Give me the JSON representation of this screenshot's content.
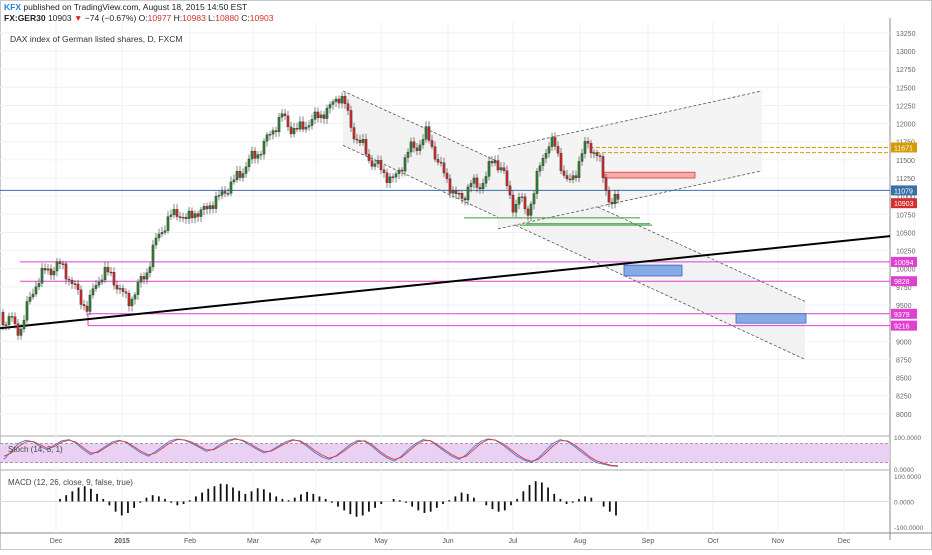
{
  "header": {
    "brand": "KFX",
    "published": "published on TradingView.com, August 18, 2015 14:50 EST",
    "ticker": "FX:GER30",
    "price": "10903",
    "change_arrow": "▼",
    "change": "−74 (−0.67%)",
    "o_label": "O:",
    "o": "10977",
    "h_label": "H:",
    "h": "10983",
    "l_label": "L:",
    "l": "10880",
    "c_label": "C:",
    "c": "10903"
  },
  "chart_data": [
    {
      "type": "candlestick",
      "title": "DAX index of German listed shares, D, FXCM",
      "ylim": [
        7750,
        13400
      ],
      "yticks": [
        8000,
        8250,
        8500,
        8750,
        9000,
        9250,
        9500,
        9750,
        10000,
        10250,
        10500,
        10750,
        11000,
        11250,
        11500,
        11750,
        12000,
        12250,
        12500,
        12750,
        13000,
        13250
      ],
      "xtick_labels": [
        "Dec",
        "2015",
        "Feb",
        "Mar",
        "Apr",
        "May",
        "Jun",
        "Jul",
        "Aug",
        "Sep",
        "Oct",
        "Nov",
        "Dec"
      ],
      "price_path": [
        [
          0,
          9400
        ],
        [
          6,
          9250
        ],
        [
          10,
          9350
        ],
        [
          14,
          9200
        ],
        [
          20,
          9150
        ],
        [
          28,
          9500
        ],
        [
          36,
          9800
        ],
        [
          44,
          9950
        ],
        [
          52,
          10000
        ],
        [
          58,
          10050
        ],
        [
          64,
          10000
        ],
        [
          70,
          9850
        ],
        [
          76,
          9700
        ],
        [
          82,
          9550
        ],
        [
          88,
          9450
        ],
        [
          92,
          9650
        ],
        [
          98,
          9850
        ],
        [
          104,
          9950
        ],
        [
          112,
          9900
        ],
        [
          120,
          9700
        ],
        [
          128,
          9550
        ],
        [
          134,
          9650
        ],
        [
          140,
          9800
        ],
        [
          148,
          10000
        ],
        [
          155,
          10350
        ],
        [
          162,
          10550
        ],
        [
          170,
          10700
        ],
        [
          178,
          10800
        ],
        [
          186,
          10650
        ],
        [
          194,
          10800
        ],
        [
          202,
          10750
        ],
        [
          210,
          10900
        ],
        [
          218,
          10950
        ],
        [
          226,
          11100
        ],
        [
          234,
          11200
        ],
        [
          242,
          11350
        ],
        [
          250,
          11500
        ],
        [
          258,
          11600
        ],
        [
          266,
          11750
        ],
        [
          274,
          11950
        ],
        [
          282,
          12100
        ],
        [
          290,
          11950
        ],
        [
          298,
          11900
        ],
        [
          306,
          12000
        ],
        [
          314,
          12050
        ],
        [
          322,
          12150
        ],
        [
          330,
          12200
        ],
        [
          336,
          12350
        ],
        [
          340,
          12400
        ],
        [
          344,
          12300
        ],
        [
          350,
          12000
        ],
        [
          356,
          11800
        ],
        [
          362,
          11700
        ],
        [
          370,
          11500
        ],
        [
          378,
          11400
        ],
        [
          386,
          11300
        ],
        [
          394,
          11200
        ],
        [
          402,
          11450
        ],
        [
          410,
          11650
        ],
        [
          418,
          11700
        ],
        [
          426,
          11850
        ],
        [
          432,
          11700
        ],
        [
          440,
          11400
        ],
        [
          448,
          11200
        ],
        [
          456,
          11000
        ],
        [
          462,
          10950
        ],
        [
          470,
          11200
        ],
        [
          478,
          11100
        ],
        [
          486,
          11300
        ],
        [
          494,
          11500
        ],
        [
          502,
          11400
        ],
        [
          508,
          11050
        ],
        [
          514,
          10850
        ],
        [
          520,
          11000
        ],
        [
          526,
          10750
        ],
        [
          532,
          10950
        ],
        [
          538,
          11300
        ],
        [
          544,
          11600
        ],
        [
          550,
          11750
        ],
        [
          556,
          11650
        ],
        [
          562,
          11400
        ],
        [
          568,
          11150
        ],
        [
          574,
          11250
        ],
        [
          580,
          11550
        ],
        [
          586,
          11700
        ],
        [
          592,
          11650
        ],
        [
          598,
          11600
        ],
        [
          604,
          11150
        ],
        [
          610,
          10950
        ],
        [
          616,
          10950
        ],
        [
          620,
          10903
        ]
      ],
      "horizontal_lines": [
        {
          "value": 11079,
          "label": "11079",
          "color": "#3a6fa8"
        },
        {
          "value": 11671,
          "label": "11671",
          "color": "#d59b00",
          "dashed": true
        },
        {
          "value": 11600,
          "dashed": true,
          "color": "#d59b00"
        },
        {
          "value": 10094,
          "label": "10094",
          "color": "#e040d0"
        },
        {
          "value": 9828,
          "label": "9828",
          "color": "#e040d0"
        },
        {
          "value": 9379,
          "label": "9379",
          "color": "#e040d0"
        },
        {
          "value": 9216,
          "label": "9216",
          "color": "#e040d0"
        }
      ],
      "last_price_label": "10903",
      "trendline": {
        "from": [
          0,
          9180
        ],
        "to": [
          890,
          10450
        ],
        "color": "#000000"
      },
      "down_channel": {
        "upper": [
          [
            343,
            12450
          ],
          [
            805,
            9550
          ]
        ],
        "lower": [
          [
            343,
            11700
          ],
          [
            805,
            8750
          ]
        ]
      },
      "up_channel": {
        "upper": [
          [
            498,
            11650
          ],
          [
            762,
            12450
          ]
        ],
        "lower": [
          [
            498,
            10550
          ],
          [
            762,
            11350
          ]
        ]
      },
      "boxes": [
        {
          "x0": 624,
          "x1": 682,
          "y0": 9900,
          "y1": 10050,
          "color": "#6a97e0"
        },
        {
          "x0": 736,
          "x1": 806,
          "y0": 9250,
          "y1": 9380,
          "color": "#6a97e0"
        },
        {
          "x0": 604,
          "x1": 695,
          "y0": 11250,
          "y1": 11330,
          "color": "#ef9a9a"
        }
      ]
    },
    {
      "type": "line",
      "title": "Stoch (14, 3, 1)",
      "ylim": [
        0,
        100
      ],
      "yticks": [
        100,
        0
      ],
      "ytick_labels": [
        "100.0000",
        "0.0000"
      ],
      "band": [
        20,
        80
      ],
      "series": [
        {
          "color": "#3f7fd8",
          "values": [
            30,
            55,
            80,
            90,
            85,
            70,
            60,
            75,
            88,
            92,
            80,
            60,
            45,
            55,
            70,
            85,
            90,
            82,
            65,
            50,
            40,
            55,
            72,
            88,
            94,
            90,
            80,
            68,
            55,
            62,
            78,
            90,
            95,
            88,
            75,
            62,
            50,
            58,
            72,
            85,
            92,
            86,
            70,
            52,
            38,
            30,
            42,
            60,
            78,
            90,
            86,
            70,
            50,
            35,
            25,
            40,
            62,
            80,
            92,
            88,
            72,
            55,
            40,
            30,
            45,
            68,
            86,
            94,
            90,
            76,
            58,
            40,
            28,
            20,
            35,
            58,
            80,
            92,
            86,
            70,
            52,
            35,
            20,
            15,
            10,
            8
          ]
        },
        {
          "color": "#e53935",
          "values": [
            40,
            50,
            70,
            85,
            86,
            76,
            64,
            70,
            84,
            90,
            84,
            66,
            50,
            52,
            66,
            80,
            88,
            84,
            70,
            55,
            44,
            50,
            66,
            82,
            92,
            91,
            84,
            72,
            60,
            60,
            72,
            86,
            93,
            90,
            80,
            66,
            54,
            56,
            68,
            80,
            90,
            88,
            75,
            58,
            44,
            34,
            40,
            55,
            72,
            86,
            88,
            75,
            56,
            40,
            30,
            36,
            55,
            74,
            88,
            89,
            76,
            60,
            45,
            34,
            40,
            60,
            80,
            92,
            91,
            80,
            64,
            46,
            32,
            24,
            30,
            50,
            72,
            88,
            88,
            75,
            58,
            40,
            26,
            18,
            12,
            10
          ]
        }
      ]
    },
    {
      "type": "bar",
      "title": "MACD (12, 26, close, 9, false, true)",
      "ylim": [
        -120,
        120
      ],
      "yticks": [
        100,
        0,
        -100
      ],
      "ytick_labels": [
        "100.0000",
        "0.0000",
        "-100.0000"
      ],
      "values": [
        10,
        25,
        40,
        55,
        60,
        50,
        30,
        10,
        -15,
        -40,
        -55,
        -45,
        -25,
        -5,
        15,
        25,
        20,
        10,
        -5,
        -15,
        -10,
        5,
        20,
        35,
        50,
        60,
        70,
        68,
        55,
        42,
        30,
        40,
        52,
        48,
        35,
        20,
        10,
        5,
        15,
        28,
        38,
        30,
        20,
        10,
        -5,
        -20,
        -35,
        -50,
        -60,
        -55,
        -40,
        -25,
        -10,
        0,
        10,
        5,
        -5,
        -20,
        -35,
        -45,
        -40,
        -25,
        -10,
        5,
        20,
        35,
        30,
        15,
        0,
        -15,
        -30,
        -40,
        -35,
        -15,
        10,
        40,
        65,
        80,
        75,
        55,
        30,
        10,
        -10,
        -5,
        10,
        20,
        15,
        0,
        -20,
        -40,
        -55
      ]
    }
  ]
}
